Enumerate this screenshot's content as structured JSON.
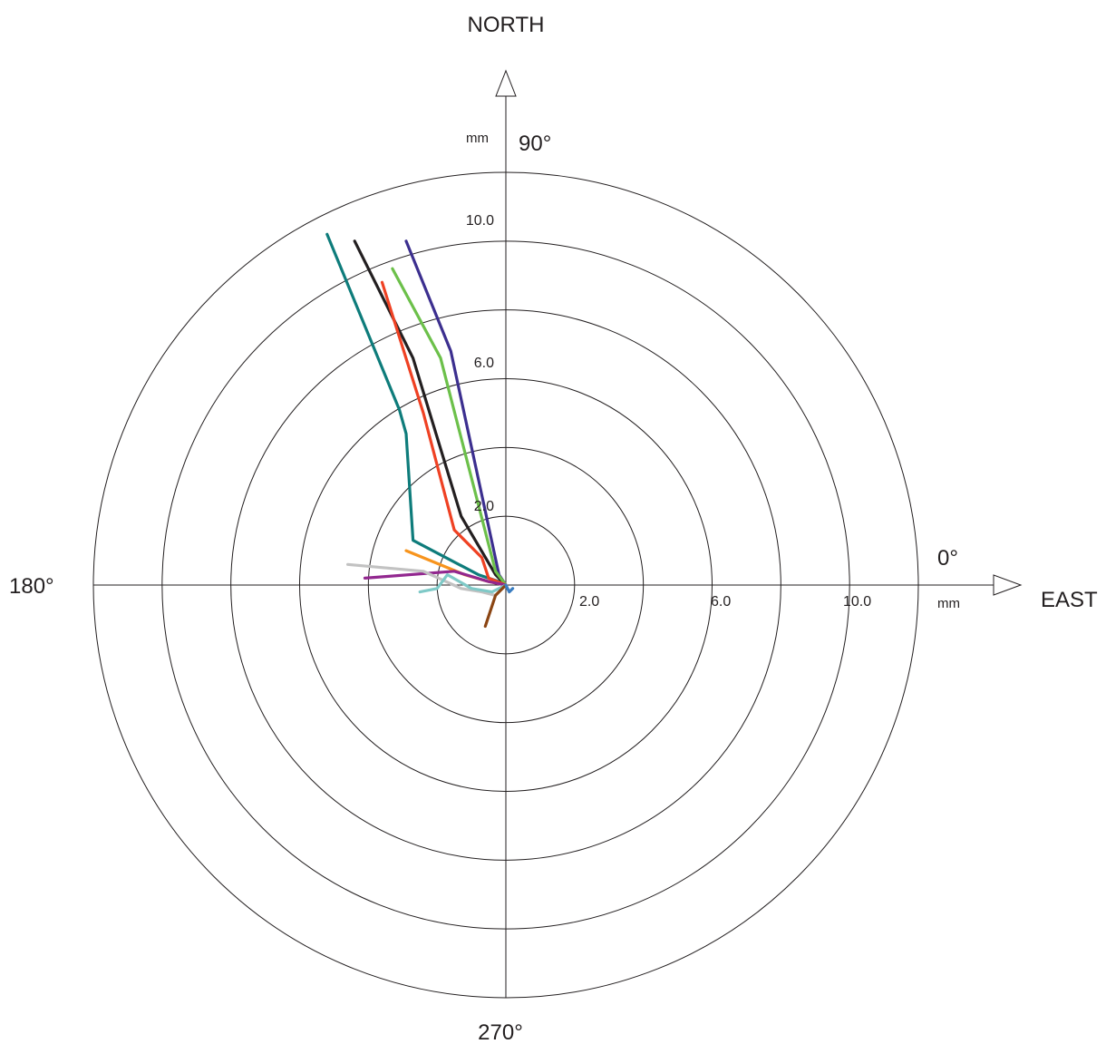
{
  "chart_data": {
    "type": "line",
    "subtype": "polar-displacement-plot",
    "title": "",
    "directions": {
      "north": "NORTH",
      "east": "EAST"
    },
    "angle_labels": {
      "top": "90°",
      "right": "0°",
      "left": "180°",
      "bottom": "270°"
    },
    "units": {
      "vertical": "mm",
      "horizontal": "mm"
    },
    "rings": [
      2,
      4,
      6,
      8,
      10,
      12
    ],
    "rmax": 12,
    "tick_labels_north": [
      "2.0",
      "6.0",
      "10.0"
    ],
    "tick_labels_east": [
      "2.0",
      "6.0",
      "10.0"
    ],
    "grid": true,
    "series": [
      {
        "color": "#0e7c7b",
        "points": [
          [
            0,
            0
          ],
          [
            -0.2,
            0.1
          ],
          [
            -0.8,
            0.3
          ],
          [
            -2.7,
            1.3
          ],
          [
            -2.9,
            4.4
          ],
          [
            -3.1,
            5.1
          ],
          [
            -5.2,
            10.2
          ]
        ]
      },
      {
        "color": "#231f20",
        "points": [
          [
            0,
            0
          ],
          [
            -0.3,
            0.3
          ],
          [
            -1.3,
            2.0
          ],
          [
            -2.7,
            6.6
          ],
          [
            -4.4,
            10.0
          ]
        ]
      },
      {
        "color": "#3c2f8f",
        "points": [
          [
            0,
            0
          ],
          [
            -0.2,
            0.3
          ],
          [
            -1.6,
            6.8
          ],
          [
            -2.9,
            10.0
          ]
        ]
      },
      {
        "color": "#6cc04a",
        "points": [
          [
            0,
            0
          ],
          [
            -0.3,
            0.4
          ],
          [
            -1.9,
            6.6
          ],
          [
            -3.3,
            9.2
          ]
        ]
      },
      {
        "color": "#ef4123",
        "points": [
          [
            0,
            0
          ],
          [
            -0.5,
            0.2
          ],
          [
            -0.7,
            0.8
          ],
          [
            -1.5,
            1.6
          ],
          [
            -2.4,
            5.0
          ],
          [
            -3.6,
            8.8
          ]
        ]
      },
      {
        "color": "#f7941d",
        "points": [
          [
            0,
            0
          ],
          [
            -0.5,
            0.1
          ],
          [
            -1.2,
            0.3
          ],
          [
            -2.9,
            1.0
          ]
        ]
      },
      {
        "color": "#92278f",
        "points": [
          [
            0,
            0
          ],
          [
            -0.5,
            0.1
          ],
          [
            -1.5,
            0.4
          ],
          [
            -4.1,
            0.2
          ]
        ]
      },
      {
        "color": "#c2c2c2",
        "points": [
          [
            0,
            0
          ],
          [
            -0.3,
            -0.3
          ],
          [
            -0.7,
            -0.2
          ],
          [
            -1.3,
            -0.1
          ],
          [
            -2.4,
            0.4
          ],
          [
            -4.6,
            0.6
          ]
        ]
      },
      {
        "color": "#7fc9c7",
        "points": [
          [
            0,
            0
          ],
          [
            -0.4,
            -0.2
          ],
          [
            -1.0,
            -0.1
          ],
          [
            -1.7,
            0.3
          ],
          [
            -2.0,
            -0.1
          ],
          [
            -2.5,
            -0.2
          ]
        ]
      },
      {
        "color": "#8b4513",
        "points": [
          [
            0,
            0
          ],
          [
            -0.3,
            -0.3
          ],
          [
            -0.6,
            -1.2
          ]
        ]
      },
      {
        "color": "#3a7dc1",
        "points": [
          [
            0,
            0
          ],
          [
            0.1,
            -0.2
          ],
          [
            0.2,
            -0.1
          ]
        ]
      }
    ]
  }
}
